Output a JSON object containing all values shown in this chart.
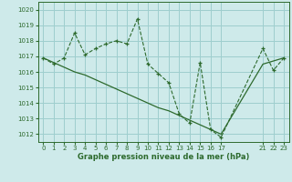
{
  "title": "Graphe pression niveau de la mer (hPa)",
  "bg_color": "#ceeaea",
  "grid_color": "#9ecece",
  "line_color": "#2d6a2d",
  "ylim": [
    1011.5,
    1020.5
  ],
  "xlim": [
    -0.5,
    23.5
  ],
  "yticks": [
    1012,
    1013,
    1014,
    1015,
    1016,
    1017,
    1018,
    1019,
    1020
  ],
  "xticks": [
    0,
    1,
    2,
    3,
    4,
    5,
    6,
    7,
    8,
    9,
    10,
    11,
    12,
    13,
    14,
    15,
    16,
    17,
    21,
    22,
    23
  ],
  "series1_x": [
    0,
    1,
    2,
    3,
    4,
    5,
    6,
    7,
    8,
    9,
    10,
    11,
    12,
    13,
    14,
    15,
    16,
    17,
    21,
    22,
    23
  ],
  "series1_y": [
    1016.9,
    1016.5,
    1016.9,
    1018.5,
    1017.1,
    1017.5,
    1017.8,
    1018.0,
    1017.8,
    1019.4,
    1016.5,
    1015.9,
    1015.3,
    1013.3,
    1012.7,
    1016.6,
    1012.3,
    1011.8,
    1017.5,
    1016.1,
    1016.9
  ],
  "series2_x": [
    0,
    1,
    2,
    3,
    4,
    5,
    6,
    7,
    8,
    9,
    10,
    11,
    12,
    13,
    14,
    15,
    16,
    17,
    21,
    22,
    23
  ],
  "series2_y": [
    1016.9,
    1016.6,
    1016.3,
    1016.0,
    1015.8,
    1015.5,
    1015.2,
    1014.9,
    1014.6,
    1014.3,
    1014.0,
    1013.7,
    1013.5,
    1013.2,
    1012.9,
    1012.6,
    1012.3,
    1012.0,
    1016.5,
    1016.7,
    1016.9
  ]
}
